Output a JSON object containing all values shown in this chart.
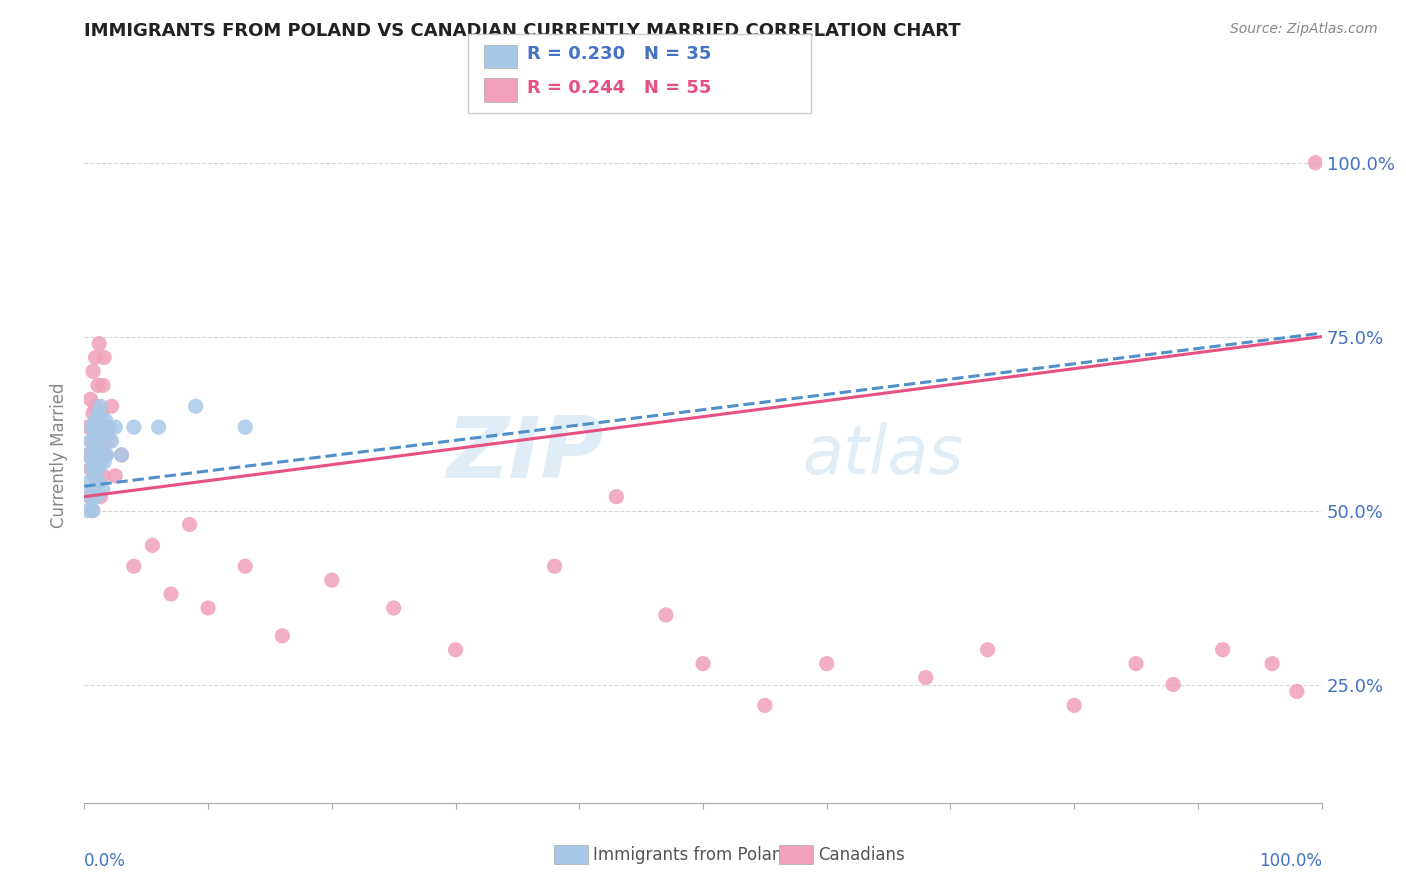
{
  "title": "IMMIGRANTS FROM POLAND VS CANADIAN CURRENTLY MARRIED CORRELATION CHART",
  "source": "Source: ZipAtlas.com",
  "ylabel": "Currently Married",
  "ytick_labels": [
    "100.0%",
    "75.0%",
    "50.0%",
    "25.0%"
  ],
  "ytick_values": [
    1.0,
    0.75,
    0.5,
    0.25
  ],
  "legend_blue_r": "R = 0.230",
  "legend_blue_n": "N = 35",
  "legend_pink_r": "R = 0.244",
  "legend_pink_n": "N = 55",
  "legend_label_blue": "Immigrants from Poland",
  "legend_label_pink": "Canadians",
  "blue_color": "#A8C8E8",
  "pink_color": "#F0A0B8",
  "blue_line_color": "#5090C8",
  "pink_line_color": "#E85080",
  "watermark_zip": "ZIP",
  "watermark_atlas": "atlas",
  "xmin": 0.0,
  "xmax": 1.0,
  "ymin": 0.08,
  "ymax": 1.08,
  "blue_scatter_x": [
    0.002,
    0.003,
    0.004,
    0.005,
    0.005,
    0.006,
    0.006,
    0.007,
    0.007,
    0.008,
    0.008,
    0.009,
    0.009,
    0.01,
    0.01,
    0.011,
    0.011,
    0.012,
    0.012,
    0.013,
    0.013,
    0.014,
    0.015,
    0.015,
    0.016,
    0.017,
    0.018,
    0.02,
    0.022,
    0.025,
    0.03,
    0.04,
    0.06,
    0.09,
    0.13
  ],
  "blue_scatter_y": [
    0.54,
    0.5,
    0.58,
    0.52,
    0.6,
    0.56,
    0.62,
    0.5,
    0.57,
    0.53,
    0.61,
    0.55,
    0.63,
    0.52,
    0.59,
    0.56,
    0.64,
    0.54,
    0.61,
    0.57,
    0.65,
    0.59,
    0.53,
    0.61,
    0.57,
    0.63,
    0.58,
    0.62,
    0.6,
    0.62,
    0.58,
    0.62,
    0.62,
    0.65,
    0.62
  ],
  "pink_scatter_x": [
    0.002,
    0.003,
    0.004,
    0.005,
    0.005,
    0.006,
    0.006,
    0.007,
    0.007,
    0.008,
    0.008,
    0.009,
    0.009,
    0.01,
    0.01,
    0.011,
    0.011,
    0.012,
    0.012,
    0.013,
    0.014,
    0.015,
    0.015,
    0.016,
    0.017,
    0.018,
    0.02,
    0.022,
    0.025,
    0.03,
    0.04,
    0.055,
    0.07,
    0.085,
    0.1,
    0.13,
    0.16,
    0.2,
    0.25,
    0.3,
    0.38,
    0.43,
    0.47,
    0.5,
    0.55,
    0.6,
    0.68,
    0.73,
    0.8,
    0.85,
    0.88,
    0.92,
    0.96,
    0.98,
    0.995
  ],
  "pink_scatter_y": [
    0.58,
    0.62,
    0.52,
    0.66,
    0.56,
    0.5,
    0.6,
    0.7,
    0.64,
    0.55,
    0.58,
    0.65,
    0.72,
    0.54,
    0.6,
    0.68,
    0.58,
    0.62,
    0.74,
    0.52,
    0.64,
    0.55,
    0.68,
    0.72,
    0.58,
    0.62,
    0.6,
    0.65,
    0.55,
    0.58,
    0.42,
    0.45,
    0.38,
    0.48,
    0.36,
    0.42,
    0.32,
    0.4,
    0.36,
    0.3,
    0.42,
    0.52,
    0.35,
    0.28,
    0.22,
    0.28,
    0.26,
    0.3,
    0.22,
    0.28,
    0.25,
    0.3,
    0.28,
    0.24,
    1.0
  ],
  "blue_line_x0": 0.0,
  "blue_line_x1": 1.0,
  "blue_line_y0": 0.535,
  "blue_line_y1": 0.755,
  "pink_line_x0": 0.0,
  "pink_line_x1": 1.0,
  "pink_line_y0": 0.52,
  "pink_line_y1": 0.75,
  "figsize": [
    14.06,
    8.92
  ],
  "dpi": 100
}
